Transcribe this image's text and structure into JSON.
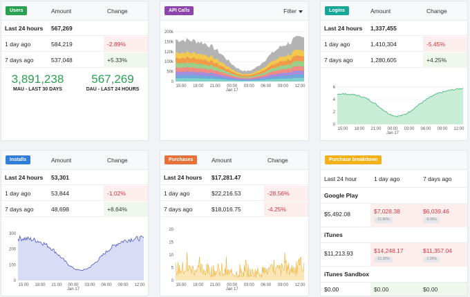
{
  "users": {
    "badge": "Users",
    "badge_color": "#2aa152",
    "col_amount": "Amount",
    "col_change": "Change",
    "rows": [
      {
        "label": "Last 24 hours",
        "amount": "567,269",
        "change": ""
      },
      {
        "label": "1 day ago",
        "amount": "584,219",
        "change": "-2.89%"
      },
      {
        "label": "7 days ago",
        "amount": "537,048",
        "change": "+5.33%"
      }
    ],
    "mau_value": "3,891,238",
    "mau_label": "MAU - LAST 30 DAYS",
    "dau_value": "567,269",
    "dau_label": "DAU - LAST 24 HOURS"
  },
  "api": {
    "badge": "API Calls",
    "badge_color": "#8e44ad",
    "filter": "Filter",
    "y_ticks": [
      "200k",
      "150k",
      "120k",
      "100k",
      "50k",
      "0"
    ],
    "x_ticks": [
      "15:00",
      "18:00",
      "21:00",
      "00:00",
      "03:00",
      "06:00",
      "09:00",
      "12:00"
    ],
    "date_label": "Jan 17"
  },
  "logins": {
    "badge": "Logins",
    "badge_color": "#16a896",
    "col_amount": "Amount",
    "col_change": "Change",
    "rows": [
      {
        "label": "Last 24 hours",
        "amount": "1,337,455",
        "change": ""
      },
      {
        "label": "1 day ago",
        "amount": "1,410,304",
        "change": "-5.45%"
      },
      {
        "label": "7 days ago",
        "amount": "1,280,605",
        "change": "+4.25%"
      }
    ],
    "y_ticks": [
      "6",
      "4",
      "2",
      "0"
    ],
    "x_ticks": [
      "15:00",
      "18:00",
      "21:00",
      "00:00",
      "03:00",
      "06:00",
      "09:00",
      "12:00"
    ],
    "date_label": "Jan 17"
  },
  "installs": {
    "badge": "Installs",
    "badge_color": "#2f7ed8",
    "col_amount": "Amount",
    "col_change": "Change",
    "rows": [
      {
        "label": "Last 24 hours",
        "amount": "53,301",
        "change": ""
      },
      {
        "label": "1 day ago",
        "amount": "53,844",
        "change": "-1.02%"
      },
      {
        "label": "7 days ago",
        "amount": "48,698",
        "change": "+8.64%"
      }
    ],
    "y_ticks": [
      "300",
      "200",
      "100",
      "0"
    ],
    "x_ticks": [
      "15:00",
      "18:00",
      "21:00",
      "00:00",
      "03:00",
      "06:00",
      "09:00",
      "12:00"
    ],
    "date_label": "Jan 17"
  },
  "purchases": {
    "badge": "Purchases",
    "badge_color": "#e8713a",
    "col_amount": "Amount",
    "col_change": "Change",
    "rows": [
      {
        "label": "Last 24 hours",
        "amount": "$17,281.47",
        "change": ""
      },
      {
        "label": "1 day ago",
        "amount": "$22,216.53",
        "change": "-28.56%"
      },
      {
        "label": "7 days ago",
        "amount": "$18,016.75",
        "change": "-4.25%"
      }
    ],
    "y_ticks": [
      "20",
      "15",
      "10",
      "5",
      "0"
    ],
    "x_ticks": [
      "15:00",
      "18:00",
      "21:00",
      "00:00",
      "03:00",
      "06:00",
      "09:00",
      "12:00"
    ],
    "date_label": "Jan 17"
  },
  "breakdown": {
    "badge": "Purchase breakdown",
    "badge_color": "#f2b118",
    "col1": "Last 24 hour",
    "col2": "1 day ago",
    "col3": "7 days ago",
    "sections": [
      {
        "name": "Google Play",
        "last": "$5,492.08",
        "day": "$7,028.38",
        "day_pill": "-21.86%",
        "week": "$6,039.46",
        "week_pill": "-9.05%"
      },
      {
        "name": "iTunes",
        "last": "$11,213.93",
        "day": "$14,248.17",
        "day_pill": "-21.30%",
        "week": "$11,357.04",
        "week_pill": "-1.26%"
      },
      {
        "name": "iTunes Sandbox",
        "last": "$0.00",
        "day": "$0.00",
        "week": "$0.00"
      }
    ]
  }
}
